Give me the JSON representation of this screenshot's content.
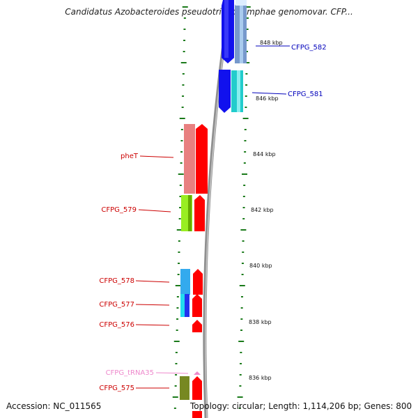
{
  "title": "Candidatus Azobacteroides pseudotrichonymphae genomovar. CFP...",
  "footer": {
    "accession": "Accession: NC_011565",
    "summary": "Topology: circular; Length: 1,114,206 bp; Genes: 800"
  },
  "colors": {
    "label_red": "#cc0000",
    "label_blue": "#0000bb",
    "label_pink": "#ee88cc",
    "tick_green": "#1a7a1a",
    "backbone": "#909090"
  },
  "scale_labels": [
    "848 kbp",
    "846 kbp",
    "844 kbp",
    "842 kbp",
    "840 kbp",
    "838 kbp",
    "836 kbp"
  ],
  "genes_left": [
    {
      "name": "pheT",
      "color_key": "label_red"
    },
    {
      "name": "CFPG_579",
      "color_key": "label_red"
    },
    {
      "name": "CFPG_578",
      "color_key": "label_red"
    },
    {
      "name": "CFPG_577",
      "color_key": "label_red"
    },
    {
      "name": "CFPG_576",
      "color_key": "label_red"
    },
    {
      "name": "CFPG_tRNA35",
      "color_key": "label_pink"
    },
    {
      "name": "CFPG_575",
      "color_key": "label_red"
    }
  ],
  "genes_right": [
    {
      "name": "CFPG_582",
      "color_key": "label_blue"
    },
    {
      "name": "CFPG_581",
      "color_key": "label_blue"
    }
  ]
}
